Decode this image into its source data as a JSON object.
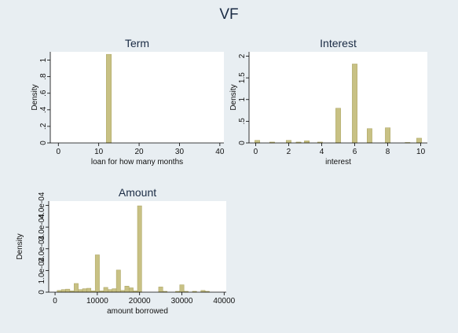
{
  "figure": {
    "title": "VF"
  },
  "colors": {
    "bar_fill": "#c8c184",
    "bar_stroke": "#a9a25f",
    "plot_bg": "#ffffff",
    "outer_bg": "#e8eef2",
    "title": "#1a2b44"
  },
  "chart_data": [
    {
      "type": "bar",
      "title": "Term",
      "xlabel": "loan for how many months",
      "ylabel": "Density",
      "xlim": [
        -2,
        41
      ],
      "ylim": [
        0,
        1.1
      ],
      "xticks": [
        0,
        10,
        20,
        30,
        40
      ],
      "xtick_labels": [
        "0",
        "10",
        "20",
        "30",
        "40"
      ],
      "yticks": [
        0,
        0.2,
        0.4,
        0.6,
        0.8,
        1
      ],
      "ytick_labels": [
        "0",
        ".2",
        ".4",
        ".6",
        ".8",
        "1"
      ],
      "bin_width": 1.25,
      "bins": [
        {
          "x": 12.5,
          "value": 1.07
        }
      ],
      "grid": false
    },
    {
      "type": "bar",
      "title": "Interest",
      "xlabel": "interest",
      "ylabel": "Density",
      "xlim": [
        -0.4,
        10.4
      ],
      "ylim": [
        0,
        2.1
      ],
      "xticks": [
        0,
        2,
        4,
        6,
        8,
        10
      ],
      "xtick_labels": [
        "0",
        "2",
        "4",
        "6",
        "8",
        "10"
      ],
      "yticks": [
        0,
        0.5,
        1,
        1.5,
        2
      ],
      "ytick_labels": [
        "0",
        ".5",
        "1",
        "1.5",
        "2"
      ],
      "bin_width": 0.3,
      "bins": [
        {
          "x": 0.1,
          "value": 0.06
        },
        {
          "x": 1.0,
          "value": 0.02
        },
        {
          "x": 2.0,
          "value": 0.06
        },
        {
          "x": 2.6,
          "value": 0.02
        },
        {
          "x": 3.1,
          "value": 0.05
        },
        {
          "x": 3.9,
          "value": 0.02
        },
        {
          "x": 5.0,
          "value": 0.8
        },
        {
          "x": 6.0,
          "value": 1.82
        },
        {
          "x": 6.9,
          "value": 0.33
        },
        {
          "x": 8.0,
          "value": 0.35
        },
        {
          "x": 9.2,
          "value": 0.01
        },
        {
          "x": 9.9,
          "value": 0.11
        }
      ],
      "grid": false
    },
    {
      "type": "bar",
      "title": "Amount",
      "xlabel": "amount borrowed",
      "ylabel": "Density",
      "xlim": [
        -1500,
        40500
      ],
      "ylim": [
        0,
        0.00042
      ],
      "xticks": [
        0,
        10000,
        20000,
        30000,
        40000
      ],
      "xtick_labels": [
        "0",
        "10000",
        "20000",
        "30000",
        "40000"
      ],
      "yticks": [
        0,
        0.0001,
        0.0002,
        0.0003,
        0.0004
      ],
      "ytick_labels": [
        "0",
        "1.0e-04",
        "2.0e-04",
        "3.0e-04",
        "4.0e-04"
      ],
      "bin_width": 1000,
      "bins": [
        {
          "x": 1000,
          "value": 8e-06
        },
        {
          "x": 2000,
          "value": 1.2e-05
        },
        {
          "x": 3000,
          "value": 1.4e-05
        },
        {
          "x": 4000,
          "value": 6e-06
        },
        {
          "x": 5000,
          "value": 4e-05
        },
        {
          "x": 6000,
          "value": 1.2e-05
        },
        {
          "x": 7000,
          "value": 1.6e-05
        },
        {
          "x": 8000,
          "value": 1.8e-05
        },
        {
          "x": 9000,
          "value": 6e-06
        },
        {
          "x": 10000,
          "value": 0.000172
        },
        {
          "x": 11000,
          "value": 6e-06
        },
        {
          "x": 12000,
          "value": 2.2e-05
        },
        {
          "x": 13000,
          "value": 1.2e-05
        },
        {
          "x": 14000,
          "value": 1.6e-05
        },
        {
          "x": 15000,
          "value": 0.000102
        },
        {
          "x": 16000,
          "value": 8e-06
        },
        {
          "x": 17000,
          "value": 2.8e-05
        },
        {
          "x": 18000,
          "value": 2e-05
        },
        {
          "x": 19000,
          "value": 6e-06
        },
        {
          "x": 20000,
          "value": 0.000398
        },
        {
          "x": 25000,
          "value": 2.4e-05
        },
        {
          "x": 26000,
          "value": 4e-06
        },
        {
          "x": 29000,
          "value": 4e-06
        },
        {
          "x": 30000,
          "value": 3.4e-05
        },
        {
          "x": 31000,
          "value": 4e-06
        },
        {
          "x": 33000,
          "value": 4e-06
        },
        {
          "x": 35000,
          "value": 8e-06
        },
        {
          "x": 36000,
          "value": 4e-06
        }
      ],
      "grid": false
    }
  ]
}
